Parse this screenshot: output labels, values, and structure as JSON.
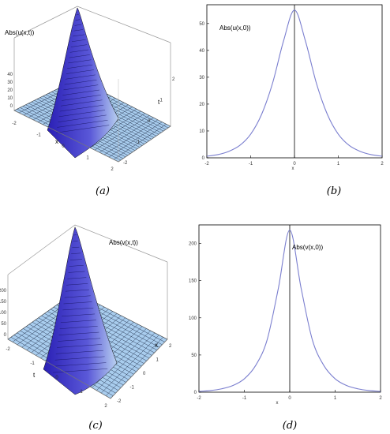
{
  "captions": [
    "(a)",
    "(b)",
    "(c)",
    "(d)"
  ],
  "chart_data": [
    {
      "id": "a",
      "type": "surface",
      "zlabel": "Abs(u(x,t))",
      "xlabel": "x",
      "ylabel": "t",
      "z_ticks": [
        "0",
        "10",
        "20",
        "30",
        "40"
      ],
      "x_ticks": [
        "-2",
        "-1",
        "0",
        "1",
        "2"
      ],
      "t_ticks": [
        "-2",
        "-1",
        "0",
        "1",
        "2"
      ],
      "peak": 55,
      "colors": {
        "peak": "#2a1fb5",
        "base": "#9fc7ea"
      }
    },
    {
      "id": "b",
      "type": "line",
      "annotation": "Abs(u(x,0))",
      "xlabel": "x",
      "xlim": [
        -2,
        2
      ],
      "ylim": [
        0,
        57
      ],
      "x_ticks": [
        -2,
        -1,
        0,
        1,
        2
      ],
      "y_ticks": [
        0,
        10,
        20,
        30,
        40,
        50
      ],
      "series": [
        {
          "x": [
            -2,
            -1.75,
            -1.5,
            -1.25,
            -1,
            -0.75,
            -0.5,
            -0.25,
            0,
            0.25,
            0.5,
            0.75,
            1,
            1.25,
            1.5,
            1.75,
            2
          ],
          "y": [
            0.6,
            1.2,
            2.4,
            4.6,
            8.8,
            16.2,
            27.8,
            43.5,
            55,
            43.5,
            27.8,
            16.2,
            8.8,
            4.6,
            2.4,
            1.2,
            0.6
          ]
        }
      ],
      "colors": {
        "line": "#7b7fcf"
      }
    },
    {
      "id": "c",
      "type": "surface",
      "zlabel": "Abs(v(x,t))",
      "xlabel": "x",
      "ylabel": "t",
      "z_ticks": [
        "0",
        "50",
        "100",
        "150",
        "200"
      ],
      "x_ticks": [
        "-2",
        "-1",
        "0",
        "1",
        "2"
      ],
      "t_ticks": [
        "-2",
        "-1",
        "0",
        "1",
        "2"
      ],
      "peak": 220,
      "colors": {
        "peak": "#2a1fb5",
        "base": "#9fc7ea"
      }
    },
    {
      "id": "d",
      "type": "line",
      "annotation": "Abs(v(x,0))",
      "xlabel": "x",
      "xlim": [
        -2,
        2
      ],
      "ylim": [
        0,
        225
      ],
      "x_ticks": [
        -2,
        -1,
        0,
        1,
        2
      ],
      "y_ticks": [
        0,
        50,
        100,
        150,
        200
      ],
      "series": [
        {
          "x": [
            -2,
            -1.75,
            -1.5,
            -1.25,
            -1,
            -0.75,
            -0.5,
            -0.25,
            0,
            0.25,
            0.5,
            0.75,
            1,
            1.25,
            1.5,
            1.75,
            2
          ],
          "y": [
            1,
            2.2,
            4.5,
            9,
            18,
            36,
            70,
            140,
            218,
            140,
            70,
            36,
            18,
            9,
            4.5,
            2.2,
            1
          ]
        }
      ],
      "colors": {
        "line": "#7b7fcf"
      }
    }
  ]
}
